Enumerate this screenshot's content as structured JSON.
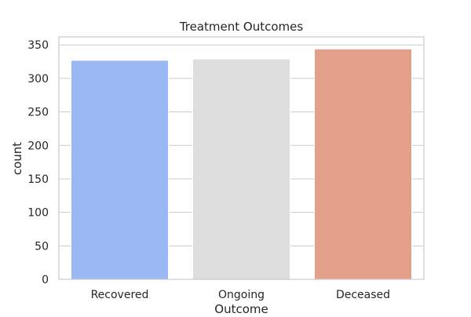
{
  "chart_data": {
    "type": "bar",
    "title": "Treatment Outcomes",
    "xlabel": "Outcome",
    "ylabel": "count",
    "categories": [
      "Recovered",
      "Ongoing",
      "Deceased"
    ],
    "values": [
      327,
      329,
      344
    ],
    "colors": [
      "#9ab8f4",
      "#dddddd",
      "#e4a08a"
    ],
    "ylim": [
      0,
      362
    ],
    "yticks": [
      0,
      50,
      100,
      150,
      200,
      250,
      300,
      350
    ],
    "grid": true,
    "legend": "none"
  }
}
